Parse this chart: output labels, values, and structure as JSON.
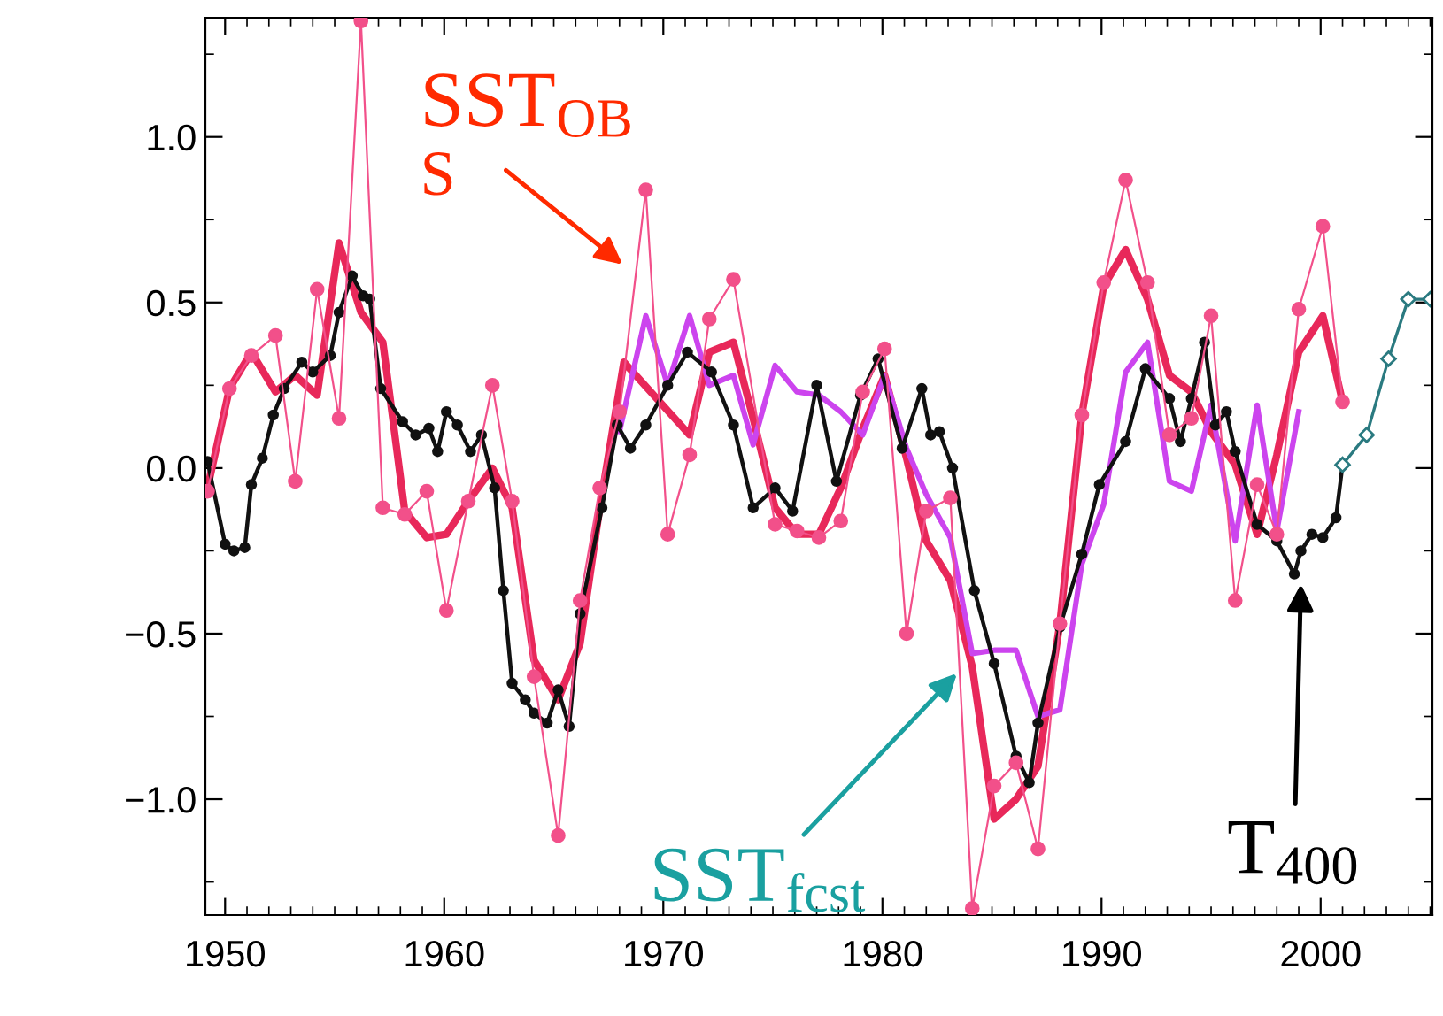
{
  "chart_data": {
    "type": "line",
    "xlim": [
      1949.1,
      2005.1
    ],
    "ylim": [
      -1.35,
      1.36
    ],
    "xticks": [
      1950,
      1960,
      1970,
      1980,
      1990,
      2000
    ],
    "yticks": [
      {
        "value": -1.0,
        "label": "−1.0"
      },
      {
        "value": -0.5,
        "label": "−0.5"
      },
      {
        "value": 0.0,
        "label": "0.0"
      },
      {
        "value": 0.5,
        "label": "0.5"
      },
      {
        "value": 1.0,
        "label": "1.0"
      }
    ],
    "grid": false,
    "legend": false,
    "series": [
      {
        "color": "#f2508a",
        "marker": "circle",
        "line_style": "solid",
        "x": [
          1949.2,
          1950.2,
          1951.2,
          1952.3,
          1953.2,
          1954.2,
          1955.2,
          1956.2,
          1957.2,
          1958.2,
          1959.2,
          1960.1,
          1961.1,
          1962.2,
          1963.1,
          1964.1,
          1965.2,
          1966.2,
          1967.1,
          1968.0,
          1969.2,
          1970.2,
          1971.2,
          1972.1,
          1973.2,
          1975.1,
          1976.1,
          1977.1,
          1978.1,
          1979.1,
          1980.1,
          1981.1,
          1982.0,
          1983.1,
          1984.1,
          1985.1,
          1986.1,
          1987.1,
          1988.1,
          1989.1,
          1990.1,
          1991.1,
          1992.1,
          1993.1,
          1994.1,
          1995.0,
          1996.1,
          1997.1,
          1998.0,
          1999.0,
          2000.1,
          2001.0
        ],
        "values": [
          -0.07,
          0.24,
          0.34,
          0.4,
          -0.04,
          0.54,
          0.15,
          1.35,
          -0.12,
          -0.14,
          -0.07,
          -0.43,
          -0.1,
          0.25,
          -0.1,
          -0.63,
          -1.11,
          -0.4,
          -0.06,
          0.17,
          0.84,
          -0.2,
          0.04,
          0.45,
          0.57,
          -0.17,
          -0.19,
          -0.21,
          -0.16,
          0.23,
          0.36,
          -0.5,
          -0.13,
          -0.09,
          -1.33,
          -0.96,
          -0.89,
          -1.15,
          -0.47,
          0.16,
          0.56,
          0.87,
          0.56,
          0.1,
          0.15,
          0.46,
          -0.4,
          -0.05,
          -0.2,
          0.48,
          0.73,
          0.2
        ]
      },
      {
        "color": "#e8285a",
        "marker": "none",
        "line_style": "solid",
        "x": [
          1949.2,
          1950.2,
          1951.2,
          1952.3,
          1953.2,
          1954.2,
          1955.2,
          1956.2,
          1957.2,
          1958.2,
          1959.2,
          1960.1,
          1961.1,
          1962.2,
          1963.1,
          1964.1,
          1965.2,
          1966.2,
          1967.1,
          1968.2,
          1971.2,
          1972.1,
          1973.2,
          1974.1,
          1975.1,
          1976.1,
          1977.1,
          1978.1,
          1979.1,
          1980.1,
          1981.1,
          1982.0,
          1983.1,
          1984.1,
          1985.1,
          1986.1,
          1987.1,
          1988.1,
          1989.1,
          1990.1,
          1991.1,
          1992.1,
          1993.1,
          1994.1,
          1995.0,
          1996.1,
          1997.1,
          1998.0,
          1999.0,
          2000.1,
          2001.0
        ],
        "values": [
          -0.06,
          0.24,
          0.35,
          0.23,
          0.28,
          0.22,
          0.68,
          0.47,
          0.38,
          -0.13,
          -0.21,
          -0.2,
          -0.1,
          0.0,
          -0.12,
          -0.58,
          -0.7,
          -0.53,
          -0.12,
          0.32,
          0.1,
          0.35,
          0.38,
          0.15,
          -0.12,
          -0.2,
          -0.2,
          -0.06,
          0.12,
          0.28,
          0.03,
          -0.22,
          -0.34,
          -0.6,
          -1.06,
          -1.0,
          -0.9,
          -0.47,
          0.16,
          0.55,
          0.66,
          0.51,
          0.28,
          0.23,
          0.11,
          0.01,
          -0.2,
          0.04,
          0.35,
          0.46,
          0.2
        ]
      },
      {
        "color": "#cc44ee",
        "marker": "none",
        "line_style": "solid",
        "x": [
          1968.0,
          1969.2,
          1970.2,
          1971.2,
          1972.1,
          1973.2,
          1974.1,
          1975.1,
          1976.1,
          1977.1,
          1978.1,
          1979.1,
          1980.1,
          1981.1,
          1982.0,
          1983.1,
          1984.1,
          1985.1,
          1986.1,
          1987.1,
          1988.1,
          1989.1,
          1990.1,
          1991.1,
          1992.1,
          1993.1,
          1994.1,
          1995.0,
          1996.1,
          1997.1,
          1998.0,
          1999.0
        ],
        "values": [
          0.11,
          0.46,
          0.25,
          0.46,
          0.25,
          0.28,
          0.07,
          0.31,
          0.23,
          0.22,
          0.17,
          0.1,
          0.28,
          0.06,
          -0.08,
          -0.21,
          -0.56,
          -0.55,
          -0.55,
          -0.75,
          -0.73,
          -0.29,
          -0.11,
          0.29,
          0.38,
          -0.04,
          -0.07,
          0.19,
          -0.22,
          0.19,
          -0.19,
          0.17
        ]
      },
      {
        "color": "#111111",
        "marker": "circle",
        "line_style": "solid",
        "x": [
          1949.2,
          1950.0,
          1950.4,
          1950.9,
          1951.2,
          1951.7,
          1952.2,
          1952.7,
          1953.5,
          1954.0,
          1954.8,
          1955.2,
          1955.8,
          1956.3,
          1956.6,
          1957.1,
          1958.1,
          1958.7,
          1959.3,
          1959.7,
          1960.1,
          1960.6,
          1961.2,
          1961.7,
          1962.3,
          1962.7,
          1963.1,
          1963.7,
          1964.1,
          1964.7,
          1965.2,
          1965.7,
          1966.2,
          1967.2,
          1967.9,
          1968.5,
          1969.2,
          1970.2,
          1971.1,
          1972.2,
          1973.2,
          1974.1,
          1975.1,
          1975.9,
          1977.0,
          1977.9,
          1979.0,
          1979.8,
          1980.9,
          1981.8,
          1982.2,
          1982.6,
          1983.2,
          1984.2,
          1985.1,
          1986.1,
          1986.7,
          1987.1,
          1988.1,
          1989.1,
          1989.9,
          1991.1,
          1992.0,
          1993.1,
          1993.6,
          1994.1,
          1994.7,
          1995.2,
          1995.7,
          1996.1,
          1997.1,
          1998.0,
          1998.8,
          1999.1,
          1999.6,
          2000.1,
          2000.7,
          2001.0
        ],
        "values": [
          0.02,
          -0.23,
          -0.25,
          -0.24,
          -0.05,
          0.03,
          0.16,
          0.24,
          0.32,
          0.29,
          0.34,
          0.47,
          0.58,
          0.52,
          0.51,
          0.24,
          0.14,
          0.1,
          0.12,
          0.05,
          0.17,
          0.13,
          0.05,
          0.1,
          -0.06,
          -0.37,
          -0.65,
          -0.7,
          -0.74,
          -0.77,
          -0.67,
          -0.78,
          -0.44,
          -0.12,
          0.13,
          0.06,
          0.13,
          0.25,
          0.35,
          0.29,
          0.13,
          -0.12,
          -0.06,
          -0.13,
          0.25,
          -0.04,
          0.22,
          0.33,
          0.06,
          0.24,
          0.1,
          0.11,
          0.0,
          -0.37,
          -0.59,
          -0.87,
          -0.95,
          -0.77,
          -0.48,
          -0.26,
          -0.05,
          0.08,
          0.3,
          0.21,
          0.08,
          0.21,
          0.38,
          0.13,
          0.17,
          0.05,
          -0.17,
          -0.22,
          -0.32,
          -0.25,
          -0.2,
          -0.21,
          -0.15,
          0.01
        ]
      },
      {
        "color": "#2a7a80",
        "marker": "diamond",
        "line_style": "solid",
        "x": [
          2001.0,
          2002.1,
          2003.1,
          2004.0,
          2005.0
        ],
        "values": [
          0.01,
          0.1,
          0.33,
          0.51,
          0.51
        ]
      }
    ],
    "annotations": [
      "SST$_{OB}$",
      "S",
      {
        "text": "SST$_{fcst}$",
        "x": 1983.4,
        "y": -0.62
      },
      {
        "text": "T$_{400}$",
        "x": 1999.1,
        "y": -0.35
      }
    ]
  }
}
